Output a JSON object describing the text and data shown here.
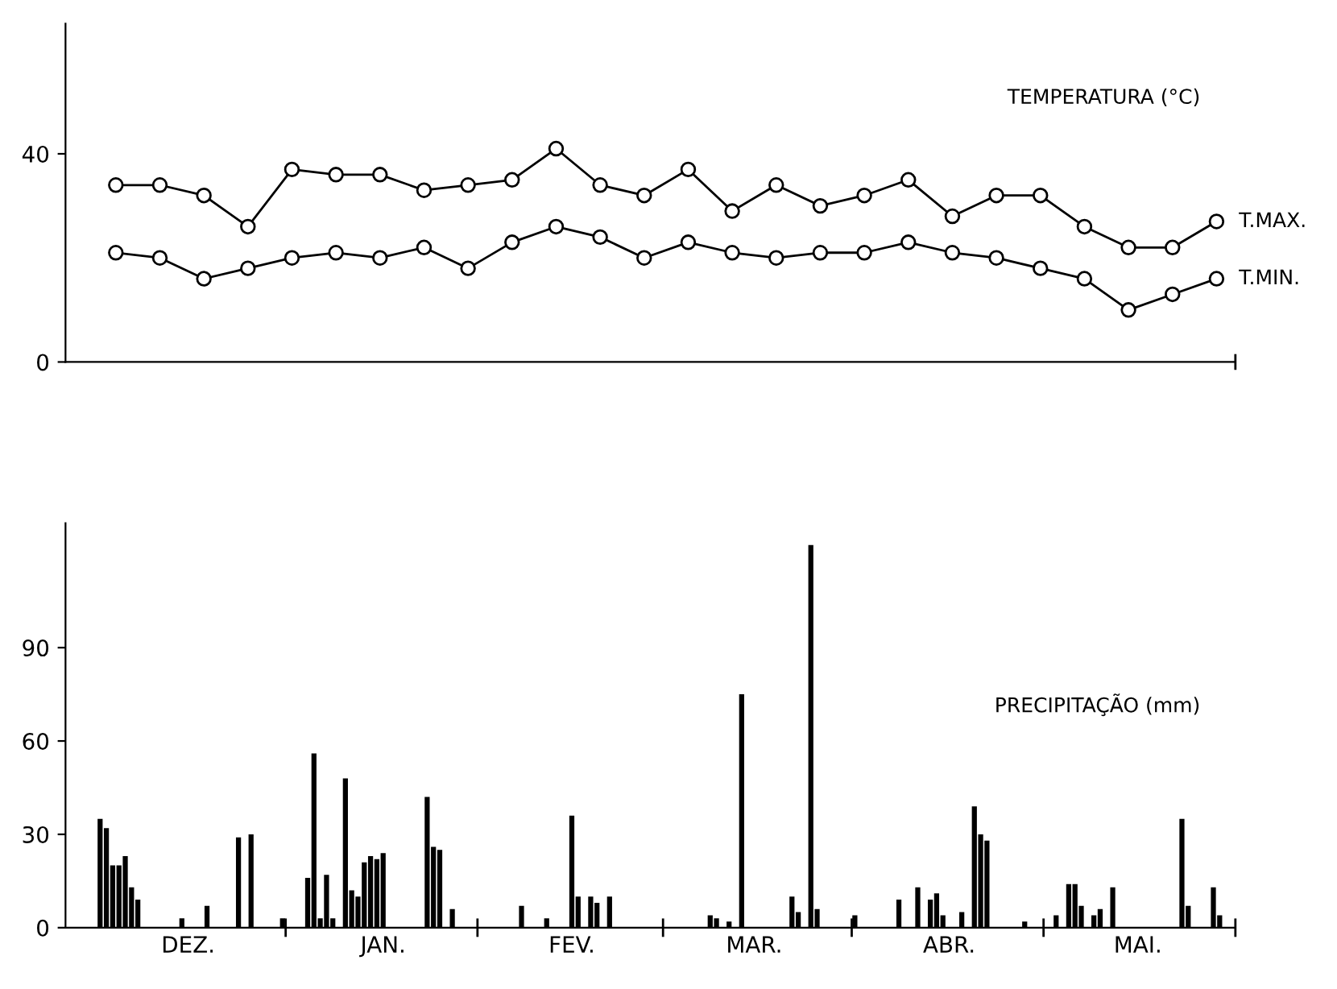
{
  "chart_data": [
    {
      "type": "line",
      "title": "TEMPERATURA (°C)",
      "categories": [
        null,
        null,
        null,
        null,
        null,
        null,
        null,
        null,
        null,
        null,
        null,
        null,
        null,
        null,
        null,
        null,
        null,
        null,
        null,
        null,
        null,
        null,
        null,
        null,
        null,
        null
      ],
      "series": [
        {
          "name": "T.MAX.",
          "color": "#000000",
          "values": [
            34,
            34,
            32,
            26,
            37,
            36,
            36,
            33,
            34,
            35,
            41,
            34,
            32,
            37,
            29,
            34,
            30,
            32,
            35,
            28,
            32,
            32,
            26,
            22,
            22,
            27
          ]
        },
        {
          "name": "T.MIN.",
          "color": "#000000",
          "values": [
            21,
            20,
            16,
            18,
            20,
            21,
            20,
            22,
            18,
            23,
            26,
            24,
            20,
            23,
            21,
            20,
            21,
            21,
            23,
            21,
            20,
            18,
            16,
            10,
            13,
            16
          ]
        }
      ],
      "ylim": [
        0,
        65
      ],
      "yticks": [
        0,
        40
      ],
      "tick_labels": "y",
      "marker": "circle",
      "line_style": "solid",
      "grid": false
    },
    {
      "type": "bar",
      "title": "PRECIPITAÇÃO (mm)",
      "categories": [
        null,
        null,
        null,
        null,
        null,
        null,
        null,
        null,
        null,
        null,
        null,
        null,
        null,
        null,
        null,
        "DEZ.",
        null,
        null,
        null,
        null,
        null,
        null,
        null,
        null,
        null,
        null,
        null,
        null,
        null,
        null,
        null,
        null,
        null,
        null,
        null,
        null,
        null,
        null,
        null,
        null,
        null,
        null,
        null,
        null,
        null,
        null,
        "JAN.",
        null,
        null,
        null,
        null,
        null,
        null,
        null,
        null,
        null,
        null,
        null,
        null,
        null,
        null,
        null,
        null,
        null,
        null,
        null,
        null,
        null,
        null,
        null,
        null,
        null,
        null,
        null,
        null,
        null,
        "FEV.",
        null,
        null,
        null,
        null,
        null,
        null,
        null,
        null,
        null,
        null,
        null,
        null,
        null,
        null,
        null,
        null,
        null,
        null,
        null,
        null,
        null,
        null,
        null,
        null,
        null,
        null,
        null,
        null,
        "MAR.",
        null,
        null,
        null,
        null,
        null,
        null,
        null,
        null,
        null,
        null,
        null,
        null,
        null,
        null,
        null,
        null,
        null,
        null,
        null,
        null,
        null,
        null,
        null,
        null,
        null,
        null,
        null,
        null,
        null,
        null,
        "ABR.",
        null,
        null,
        null,
        null,
        null,
        null,
        null,
        null,
        null,
        null,
        null,
        null,
        null,
        null,
        null,
        null,
        null,
        null,
        null,
        null,
        null,
        null,
        null,
        null,
        null,
        null,
        null,
        null,
        null,
        "MAI.",
        null,
        null,
        null,
        null,
        null,
        null,
        null,
        null,
        null,
        null,
        null,
        null,
        null,
        null,
        null
      ],
      "values": [
        0,
        35,
        32,
        20,
        20,
        23,
        13,
        9,
        0,
        0,
        0,
        0,
        0,
        0,
        3,
        0,
        0,
        0,
        7,
        0,
        0,
        0,
        0,
        29,
        0,
        30,
        0,
        0,
        0,
        0,
        3,
        0,
        0,
        0,
        16,
        56,
        3,
        17,
        3,
        0,
        48,
        12,
        10,
        21,
        23,
        22,
        24,
        0,
        0,
        0,
        0,
        0,
        0,
        42,
        26,
        25,
        0,
        6,
        0,
        0,
        0,
        0,
        0,
        0,
        0,
        0,
        0,
        0,
        7,
        0,
        0,
        0,
        3,
        0,
        0,
        0,
        36,
        10,
        0,
        10,
        8,
        0,
        10,
        0,
        0,
        0,
        0,
        0,
        0,
        0,
        0,
        0,
        0,
        0,
        0,
        0,
        0,
        0,
        4,
        3,
        0,
        2,
        0,
        75,
        0,
        0,
        0,
        0,
        0,
        0,
        0,
        10,
        5,
        0,
        123,
        6,
        0,
        0,
        0,
        0,
        0,
        4,
        0,
        0,
        0,
        0,
        0,
        0,
        9,
        0,
        0,
        13,
        0,
        9,
        11,
        4,
        0,
        0,
        5,
        0,
        39,
        30,
        28,
        0,
        0,
        0,
        0,
        0,
        2,
        0,
        0,
        0,
        0,
        4,
        0,
        14,
        14,
        7,
        0,
        4,
        6,
        0,
        13,
        0,
        0,
        0,
        0,
        0,
        0,
        0,
        0,
        0,
        0,
        35,
        7,
        0,
        0,
        0,
        13,
        4,
        0,
        0
      ],
      "color": "#000000",
      "ylim": [
        0,
        130
      ],
      "yticks": [
        0,
        30,
        60,
        90
      ],
      "grid": false
    }
  ]
}
